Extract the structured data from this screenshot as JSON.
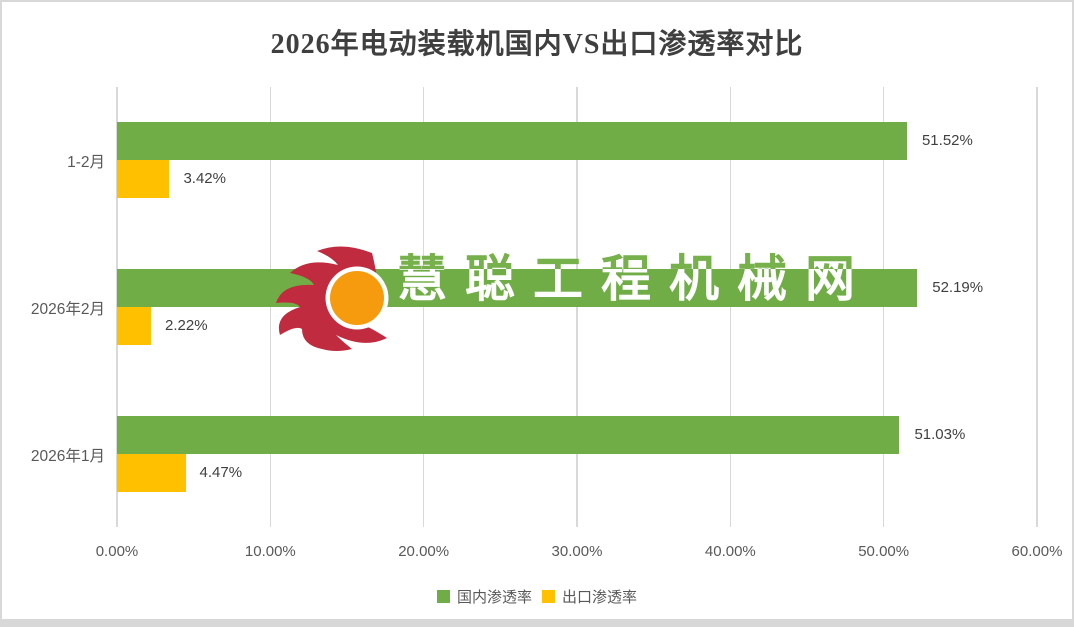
{
  "chart_data": {
    "type": "bar",
    "orientation": "horizontal",
    "title": "2026年电动装载机国内VS出口渗透率对比",
    "categories": [
      "1-2月",
      "2026年2月",
      "2026年1月"
    ],
    "series": [
      {
        "name": "国内渗透率",
        "color": "#70AD47",
        "values": [
          51.52,
          52.19,
          51.03
        ],
        "labels": [
          "51.52%",
          "52.19%",
          "51.03%"
        ]
      },
      {
        "name": "出口渗透率",
        "color": "#FFC000",
        "values": [
          3.42,
          2.22,
          4.47
        ],
        "labels": [
          "3.42%",
          "2.22%",
          "4.47%"
        ]
      }
    ],
    "x_axis": {
      "min": 0,
      "max": 60,
      "tick_step": 10,
      "tick_labels": [
        "0.00%",
        "10.00%",
        "20.00%",
        "30.00%",
        "40.00%",
        "50.00%",
        "60.00%"
      ]
    },
    "grid": true,
    "legend_position": "bottom"
  },
  "watermark": {
    "text": "慧聪工程机械网",
    "text_green": "#76B14C",
    "text_white": "#FFFFFF",
    "flame_red": "#C12B3F",
    "circle_orange": "#F59B0D"
  },
  "colors": {
    "bar_green": "#70AD47",
    "bar_yellow": "#FFC000",
    "gridline": "#D9D9D9",
    "tick_text": "#595959",
    "value_text": "#404040",
    "title_text": "#3F3F3F",
    "border": "#D8D8D8",
    "background": "#FFFFFF"
  }
}
